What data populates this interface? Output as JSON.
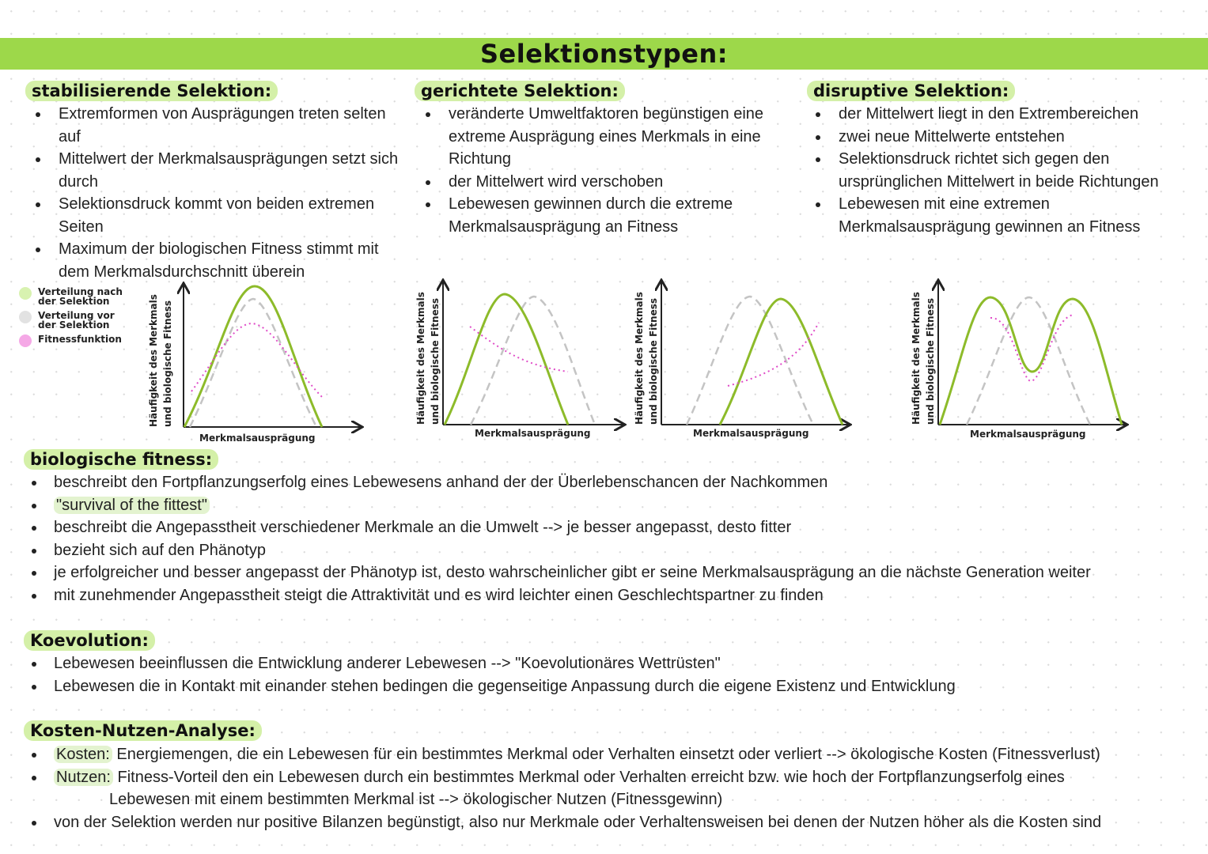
{
  "title": "Selektionstypen:",
  "colors": {
    "banner": "#9dd84a",
    "highlight": "#d4f0a8",
    "after_selection": "#8dbb2a",
    "before_selection": "#c4c4c4",
    "fitness_function": "#e04cc8"
  },
  "columns": [
    {
      "heading": "stabilisierende Selektion:",
      "bullets": [
        "Extremformen von Ausprägungen treten selten auf",
        "Mittelwert der Merkmalsausprägungen setzt sich durch",
        "Selektionsdruck kommt von beiden extremen Seiten",
        "Maximum der biologischen Fitness stimmt mit dem Merkmalsdurchschnitt überein"
      ]
    },
    {
      "heading": "gerichtete Selektion:",
      "bullets": [
        "veränderte Umweltfaktoren begünstigen eine extreme Ausprägung eines Merkmals in eine Richtung",
        "der Mittelwert wird verschoben",
        "Lebewesen gewinnen durch die extreme Merkmalsausprägung an Fitness"
      ]
    },
    {
      "heading": "disruptive Selektion:",
      "bullets": [
        "der Mittelwert liegt in den Extrembereichen",
        "zwei neue Mittelwerte entstehen",
        "Selektionsdruck richtet sich gegen den ursprünglichen Mittelwert in beide Richtungen",
        "Lebewesen mit eine extremen Merkmalsausprägung gewinnen an Fitness"
      ]
    }
  ],
  "legend": [
    {
      "label": "Verteilung nach der Selektion",
      "color": "#d8f2b0"
    },
    {
      "label": "Verteilung vor der Selektion",
      "color": "#e2e2e2"
    },
    {
      "label": "Fitnessfunktion",
      "color": "#f5a8e6"
    }
  ],
  "diagram": {
    "ylabel_1": "Häufigkeit des Merkmals",
    "ylabel_2": "und biologische Fitness",
    "xlabel": "Merkmalsausprägung"
  },
  "fitness": {
    "heading": "biologische fitness:",
    "bullets": [
      "beschreibt den Fortpflanzungserfolg eines Lebewesens anhand der der Überlebenschancen der Nachkommen",
      "\"survival of the fittest\"",
      "beschreibt die Angepasstheit verschiedener Merkmale an die Umwelt --> je besser angepasst, desto fitter",
      "bezieht sich auf den Phänotyp",
      "je erfolgreicher und besser angepasst der Phänotyp ist, desto wahrscheinlicher gibt er seine Merkmalsausprägung an die nächste Generation weiter",
      "mit zunehmender Angepasstheit steigt die Attraktivität und es wird leichter einen Geschlechtspartner zu finden"
    ]
  },
  "koevolution": {
    "heading": "Koevolution:",
    "bullets": [
      "Lebewesen beeinflussen die Entwicklung anderer Lebewesen --> \"Koevolutionäres Wettrüsten\"",
      "Lebewesen die in Kontakt mit einander stehen bedingen die gegenseitige Anpassung durch die eigene Existenz und Entwicklung"
    ]
  },
  "kosten": {
    "heading": "Kosten-Nutzen-Analyse:",
    "kosten_label": "Kosten:",
    "kosten_text": "Energiemengen, die ein Lebewesen für ein bestimmtes Merkmal oder Verhalten einsetzt oder verliert --> ökologische Kosten (Fitnessverlust)",
    "nutzen_label": "Nutzen:",
    "nutzen_text": "Fitness-Vorteil den ein Lebewesen durch ein bestimmtes Merkmal oder Verhalten erreicht bzw. wie hoch der Fortpflanzungserfolg eines",
    "nutzen_cont": "Lebewesen mit einem bestimmten Merkmal ist --> ökologischer Nutzen (Fitnessgewinn)",
    "last": "von der Selektion werden nur positive Bilanzen begünstigt, also nur Merkmale oder Verhaltensweisen bei denen der Nutzen höher als die Kosten sind"
  }
}
